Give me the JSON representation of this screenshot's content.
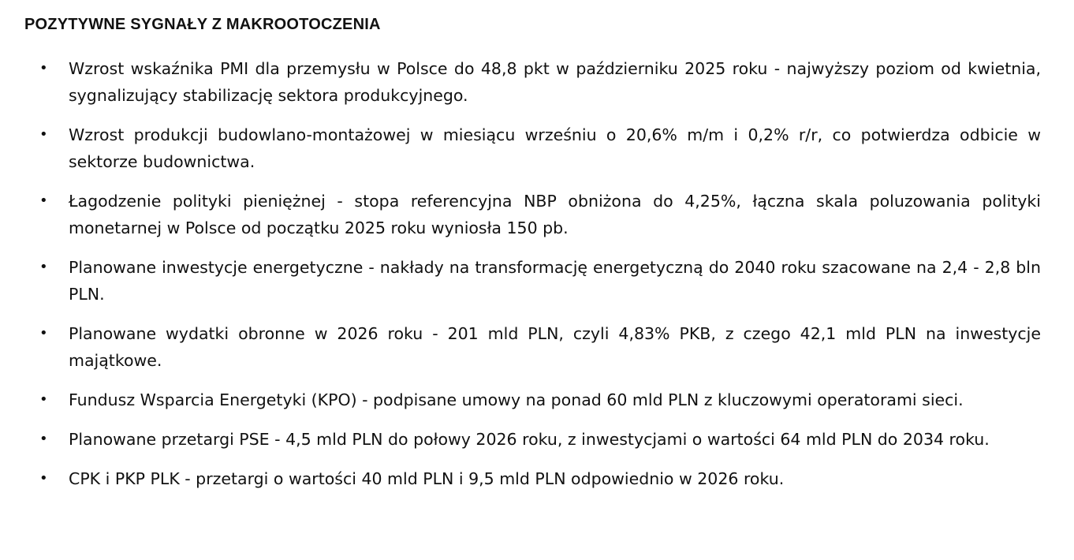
{
  "title": "POZYTYWNE SYGNAŁY Z MAKROOTOCZENIA",
  "items": [
    "Wzrost wskaźnika PMI dla przemysłu w Polsce do 48,8 pkt w październiku 2025 roku - najwyższy poziom od kwietnia, sygnalizujący stabilizację sektora produkcyjnego.",
    "Wzrost produkcji budowlano-montażowej w miesiącu wrześniu o 20,6% m/m i 0,2% r/r, co potwierdza odbicie w sektorze budownictwa.",
    "Łagodzenie polityki pieniężnej - stopa referencyjna NBP obniżona do 4,25%, łączna skala poluzowania polityki monetarnej w Polsce od początku 2025 roku wyniosła 150 pb.",
    "Planowane inwestycje energetyczne - nakłady na transformację energetyczną do 2040 roku szacowane na 2,4 - 2,8 bln PLN.",
    "Planowane wydatki obronne w 2026 roku - 201 mld PLN, czyli 4,83% PKB, z czego 42,1 mld PLN na inwestycje majątkowe.",
    "Fundusz Wsparcia Energetyki (KPO) - podpisane umowy na ponad 60 mld PLN z kluczowymi operatorami sieci.",
    "Planowane przetargi PSE - 4,5 mld PLN do połowy 2026 roku, z inwestycjami o wartości 64 mld PLN do 2034 roku.",
    "CPK i PKP PLK - przetargi o wartości 40 mld PLN i 9,5 mld PLN odpowiednio w 2026 roku."
  ]
}
